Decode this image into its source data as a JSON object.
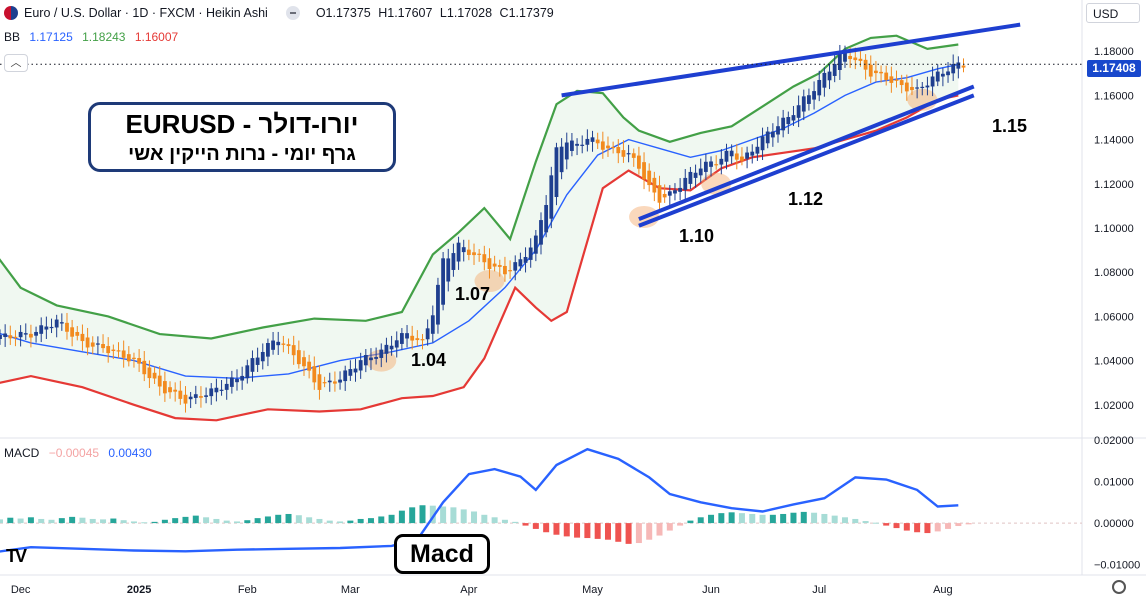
{
  "header": {
    "title": "Euro / U.S. Dollar · 1D · FXCM · Heikin Ashi",
    "ohlc": [
      "O1.17375",
      "H1.17607",
      "L1.17028",
      "C1.17379"
    ],
    "currency": "USD"
  },
  "bb_legend": {
    "name": "BB",
    "v1": "1.17125",
    "v2": "1.18243",
    "v3": "1.16007"
  },
  "macd_legend": {
    "name": "MACD",
    "v1": "−0.00045",
    "v2": "0.00430"
  },
  "current_price": "1.17408",
  "annotations": {
    "title_line1": "יורו-דולר - EURUSD",
    "title_line2": "גרף יומי - נרות הייקין אשי",
    "macd_box": "Macd",
    "levels": [
      "1.04",
      "1.07",
      "1.10",
      "1.12",
      "1.15"
    ]
  },
  "colors": {
    "bull": "#1f3f8f",
    "bear": "#f28a1e",
    "bb_upper": "#43a047",
    "bb_lower": "#e53935",
    "bb_basis": "#2962ff",
    "trendline": "#1e3fd0",
    "macd_line": "#2962ff",
    "hist_pos": "#26a69a",
    "hist_neg": "#ef5350"
  },
  "chart_data": [
    {
      "type": "candlestick",
      "style": "Heikin Ashi",
      "x_ticks": [
        "Dec",
        "2025",
        "Feb",
        "Mar",
        "Apr",
        "May",
        "Jun",
        "Jul",
        "Aug"
      ],
      "y_ticks": [
        "1.02000",
        "1.04000",
        "1.06000",
        "1.08000",
        "1.10000",
        "1.12000",
        "1.14000",
        "1.16000",
        "1.18000"
      ],
      "ylim": [
        1.005,
        1.195
      ],
      "close_path": [
        [
          0,
          1.05
        ],
        [
          10,
          1.052
        ],
        [
          15,
          1.058
        ],
        [
          20,
          1.048
        ],
        [
          25,
          1.045
        ],
        [
          30,
          1.04
        ],
        [
          35,
          1.028
        ],
        [
          40,
          1.022
        ],
        [
          45,
          1.026
        ],
        [
          50,
          1.032
        ],
        [
          55,
          1.045
        ],
        [
          58,
          1.05
        ],
        [
          62,
          1.04
        ],
        [
          66,
          1.028
        ],
        [
          70,
          1.032
        ],
        [
          74,
          1.04
        ],
        [
          78,
          1.044
        ],
        [
          81,
          1.05
        ],
        [
          83,
          1.052
        ],
        [
          86,
          1.048
        ],
        [
          88,
          1.062
        ],
        [
          90,
          1.085
        ],
        [
          93,
          1.092
        ],
        [
          96,
          1.088
        ],
        [
          99,
          1.083
        ],
        [
          102,
          1.08
        ],
        [
          105,
          1.085
        ],
        [
          108,
          1.095
        ],
        [
          110,
          1.112
        ],
        [
          112,
          1.135
        ],
        [
          114,
          1.14
        ],
        [
          116,
          1.137
        ],
        [
          118,
          1.141
        ],
        [
          120,
          1.138
        ],
        [
          123,
          1.135
        ],
        [
          126,
          1.133
        ],
        [
          128,
          1.128
        ],
        [
          130,
          1.118
        ],
        [
          132,
          1.113
        ],
        [
          134,
          1.115
        ],
        [
          137,
          1.122
        ],
        [
          140,
          1.128
        ],
        [
          143,
          1.13
        ],
        [
          146,
          1.135
        ],
        [
          148,
          1.13
        ],
        [
          151,
          1.138
        ],
        [
          154,
          1.145
        ],
        [
          157,
          1.15
        ],
        [
          160,
          1.158
        ],
        [
          163,
          1.166
        ],
        [
          166,
          1.175
        ],
        [
          168,
          1.18
        ],
        [
          170,
          1.176
        ],
        [
          173,
          1.17
        ],
        [
          176,
          1.168
        ],
        [
          179,
          1.164
        ],
        [
          182,
          1.162
        ],
        [
          185,
          1.168
        ],
        [
          188,
          1.172
        ],
        [
          190,
          1.174
        ]
      ],
      "bollinger_bands": {
        "upper": [
          [
            0,
            1.098
          ],
          [
            8,
            1.073
          ],
          [
            15,
            1.065
          ],
          [
            25,
            1.06
          ],
          [
            35,
            1.052
          ],
          [
            45,
            1.05
          ],
          [
            55,
            1.055
          ],
          [
            65,
            1.059
          ],
          [
            75,
            1.058
          ],
          [
            82,
            1.062
          ],
          [
            88,
            1.088
          ],
          [
            93,
            1.098
          ],
          [
            98,
            1.109
          ],
          [
            103,
            1.095
          ],
          [
            108,
            1.13
          ],
          [
            112,
            1.156
          ],
          [
            116,
            1.162
          ],
          [
            121,
            1.161
          ],
          [
            125,
            1.15
          ],
          [
            128,
            1.144
          ],
          [
            134,
            1.139
          ],
          [
            140,
            1.143
          ],
          [
            146,
            1.146
          ],
          [
            152,
            1.155
          ],
          [
            158,
            1.164
          ],
          [
            163,
            1.17
          ],
          [
            168,
            1.181
          ],
          [
            173,
            1.186
          ],
          [
            178,
            1.187
          ],
          [
            184,
            1.181
          ],
          [
            190,
            1.183
          ]
        ],
        "lower": [
          [
            0,
            1.028
          ],
          [
            10,
            1.033
          ],
          [
            20,
            1.028
          ],
          [
            30,
            1.02
          ],
          [
            38,
            1.014
          ],
          [
            46,
            1.013
          ],
          [
            56,
            1.018
          ],
          [
            66,
            1.017
          ],
          [
            74,
            1.018
          ],
          [
            82,
            1.023
          ],
          [
            88,
            1.024
          ],
          [
            94,
            1.028
          ],
          [
            98,
            1.041
          ],
          [
            104,
            1.073
          ],
          [
            108,
            1.064
          ],
          [
            111,
            1.058
          ],
          [
            114,
            1.062
          ],
          [
            117,
            1.086
          ],
          [
            121,
            1.118
          ],
          [
            126,
            1.126
          ],
          [
            132,
            1.118
          ],
          [
            138,
            1.117
          ],
          [
            144,
            1.127
          ],
          [
            150,
            1.132
          ],
          [
            156,
            1.134
          ],
          [
            162,
            1.136
          ],
          [
            168,
            1.14
          ],
          [
            174,
            1.144
          ],
          [
            180,
            1.15
          ],
          [
            186,
            1.158
          ],
          [
            190,
            1.16
          ]
        ],
        "basis": [
          [
            0,
            1.055
          ],
          [
            10,
            1.048
          ],
          [
            20,
            1.044
          ],
          [
            30,
            1.04
          ],
          [
            40,
            1.033
          ],
          [
            50,
            1.032
          ],
          [
            60,
            1.034
          ],
          [
            70,
            1.04
          ],
          [
            80,
            1.044
          ],
          [
            88,
            1.048
          ],
          [
            95,
            1.058
          ],
          [
            102,
            1.073
          ],
          [
            108,
            1.09
          ],
          [
            114,
            1.115
          ],
          [
            120,
            1.133
          ],
          [
            126,
            1.14
          ],
          [
            132,
            1.136
          ],
          [
            138,
            1.132
          ],
          [
            144,
            1.135
          ],
          [
            150,
            1.14
          ],
          [
            156,
            1.145
          ],
          [
            162,
            1.152
          ],
          [
            168,
            1.16
          ],
          [
            174,
            1.166
          ],
          [
            180,
            1.168
          ],
          [
            186,
            1.172
          ],
          [
            190,
            1.174
          ]
        ]
      },
      "trendlines": [
        {
          "from": [
            113,
            1.16
          ],
          "to": [
            202,
            1.192
          ]
        },
        {
          "from": [
            128,
            1.101
          ],
          "to": [
            193,
            1.16
          ]
        },
        {
          "from": [
            128,
            1.104
          ],
          "to": [
            193,
            1.164
          ]
        }
      ],
      "support_zones": [
        [
          78,
          1.04
        ],
        [
          99,
          1.076
        ],
        [
          129,
          1.105
        ],
        [
          143,
          1.12
        ],
        [
          183,
          1.158
        ]
      ]
    },
    {
      "type": "bar+line",
      "name": "MACD",
      "y_ticks": [
        "0.02000",
        "0.01000",
        "0.00000",
        "−0.01000"
      ],
      "ylim": [
        -0.0125,
        0.0205
      ],
      "macd_line": [
        [
          0,
          -0.0075
        ],
        [
          10,
          -0.0058
        ],
        [
          20,
          -0.0062
        ],
        [
          30,
          -0.0066
        ],
        [
          40,
          -0.0068
        ],
        [
          50,
          -0.0064
        ],
        [
          60,
          -0.0062
        ],
        [
          70,
          -0.006
        ],
        [
          80,
          -0.0055
        ],
        [
          85,
          -0.004
        ],
        [
          90,
          0.005
        ],
        [
          95,
          0.0118
        ],
        [
          100,
          0.013
        ],
        [
          105,
          0.0112
        ],
        [
          108,
          0.008
        ],
        [
          112,
          0.014
        ],
        [
          118,
          0.0178
        ],
        [
          124,
          0.0155
        ],
        [
          130,
          0.011
        ],
        [
          134,
          0.007
        ],
        [
          140,
          0.005
        ],
        [
          146,
          0.0036
        ],
        [
          152,
          0.0028
        ],
        [
          158,
          0.0045
        ],
        [
          164,
          0.006
        ],
        [
          170,
          0.011
        ],
        [
          176,
          0.0105
        ],
        [
          182,
          0.008
        ],
        [
          186,
          0.004
        ],
        [
          190,
          0.0043
        ]
      ],
      "histogram": [
        0.0008,
        0.0012,
        0.0009,
        0.0013,
        0.0011,
        0.0014,
        0.001,
        0.0008,
        0.0012,
        0.0015,
        0.0013,
        0.001,
        0.0009,
        0.0011,
        0.0007,
        0.0004,
        0.0002,
        0.0003,
        0.0008,
        0.0012,
        0.0015,
        0.0018,
        0.0014,
        0.001,
        0.0006,
        0.0004,
        0.0007,
        0.0012,
        0.0016,
        0.002,
        0.0022,
        0.0019,
        0.0014,
        0.001,
        0.0006,
        0.0004,
        0.0006,
        0.001,
        0.0012,
        0.0016,
        0.002,
        0.003,
        0.0038,
        0.0043,
        0.0042,
        0.004,
        0.0038,
        0.0033,
        0.0028,
        0.002,
        0.0014,
        0.0008,
        0.0003,
        -0.0006,
        -0.0014,
        -0.0022,
        -0.0028,
        -0.0032,
        -0.0035,
        -0.0036,
        -0.0038,
        -0.004,
        -0.0045,
        -0.005,
        -0.0048,
        -0.004,
        -0.003,
        -0.0018,
        -0.0006,
        0.0006,
        0.0014,
        0.002,
        0.0024,
        0.0026,
        0.0024,
        0.0022,
        0.002,
        0.002,
        0.0022,
        0.0025,
        0.0027,
        0.0025,
        0.0022,
        0.0018,
        0.0014,
        0.001,
        0.0005,
        0.0001,
        -0.0006,
        -0.0012,
        -0.0018,
        -0.0022,
        -0.0024,
        -0.002,
        -0.0014,
        -0.0007,
        -0.0003
      ]
    }
  ]
}
